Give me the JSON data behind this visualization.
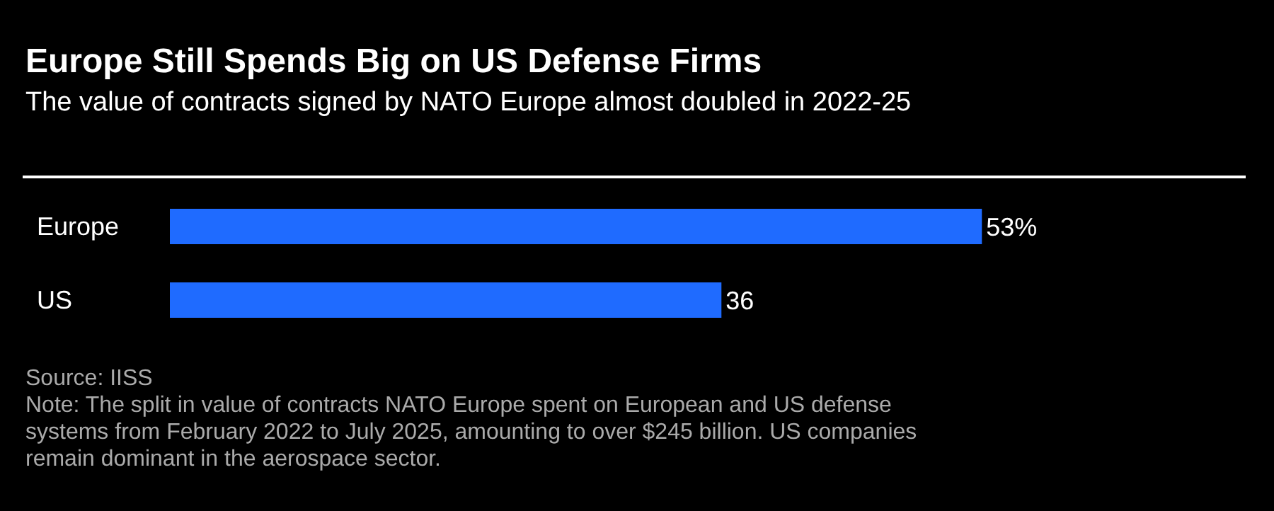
{
  "chart_data": {
    "type": "bar",
    "orientation": "horizontal",
    "title": "Europe Still Spends Big on US Defense Firms",
    "subtitle": "The value of contracts signed by NATO Europe almost doubled in 2022-25",
    "categories": [
      "Europe",
      "US"
    ],
    "values": [
      53,
      36
    ],
    "value_labels": [
      "53%",
      "36"
    ],
    "color": "#1f6bff",
    "legend": false,
    "grid": false,
    "annotations": [
      "Source: IISS",
      "Note: The split in value of contracts NATO Europe spent on European and US defense systems from February 2022 to July 2025, amounting to over $245 billion. US companies remain dominant in the aerospace sector."
    ]
  }
}
